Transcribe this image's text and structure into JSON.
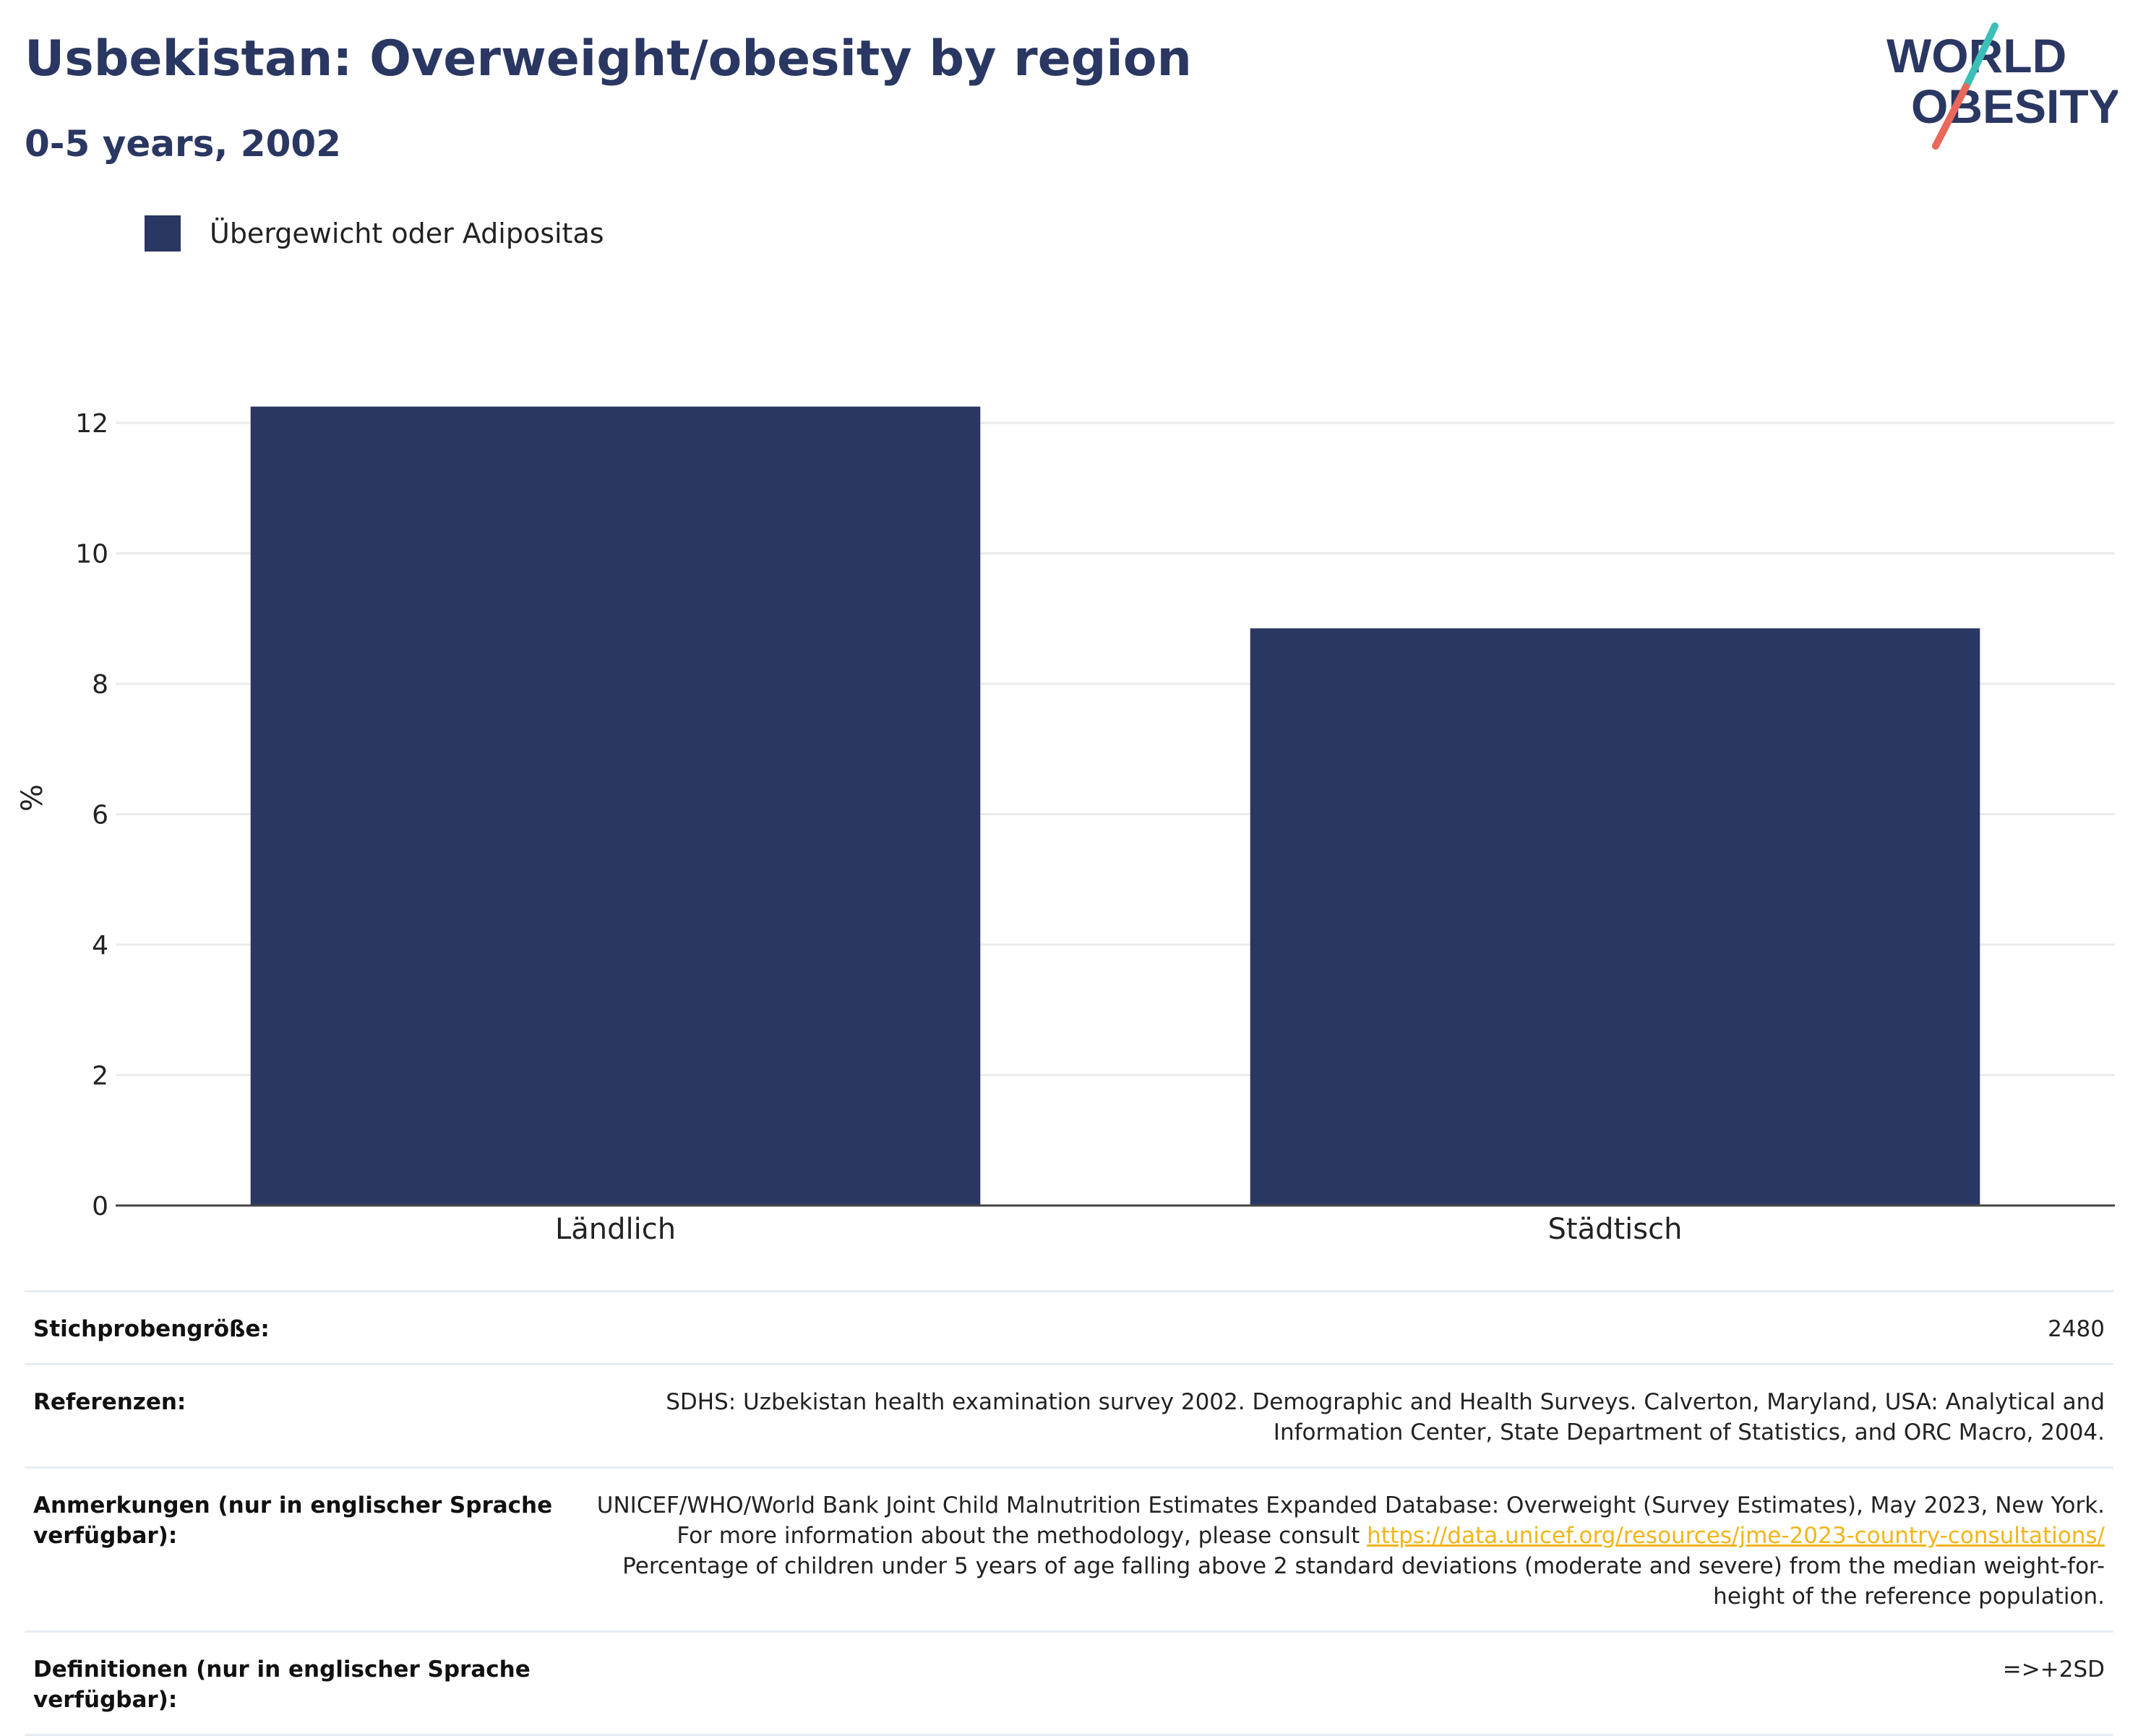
{
  "header": {
    "title": "Usbekistan: Overweight/obesity by region",
    "subtitle": "0-5 years, 2002"
  },
  "logo": {
    "text_line1": "WORLD",
    "text_line2": "OBESITY",
    "colors": {
      "text": "#2a3762",
      "slash_top": "#3bbfb6",
      "slash_bottom": "#e8685a"
    }
  },
  "colors": {
    "bar": "#2a3762",
    "gridline": "#ebebeb",
    "axis": "#444444",
    "link": "#f2b51a"
  },
  "chart_data": {
    "type": "bar",
    "categories": [
      "Ländlich",
      "Städtisch"
    ],
    "series": [
      {
        "name": "Übergewicht oder Adipositas",
        "values": [
          12.25,
          8.85
        ]
      }
    ],
    "ylabel": "%",
    "ylim": [
      0,
      12.5
    ],
    "yticks": [
      0,
      2,
      4,
      6,
      8,
      10,
      12
    ],
    "grid": true,
    "legend_position": "top-left"
  },
  "info": {
    "sample_size": {
      "label": "Stichprobengröße:",
      "value": "2480"
    },
    "references": {
      "label": "Referenzen:",
      "value": "SDHS: Uzbekistan health examination survey 2002. Demographic and Health Surveys. Calverton, Maryland, USA: Analytical and Information Center, State Department of Statistics, and ORC Macro, 2004."
    },
    "notes": {
      "label": "Anmerkungen (nur in englischer Sprache verfügbar):",
      "text_before": "UNICEF/WHO/World Bank Joint Child Malnutrition Estimates Expanded Database: Overweight (Survey Estimates), May 2023, New York. For more information about the methodology, please consult ",
      "link": "https://data.unicef.org/resources/jme-2023-country-consultations/",
      "text_after": " Percentage of children under 5 years of age falling above 2 standard deviations (moderate and severe) from the median weight-for-height of the reference population."
    },
    "definitions": {
      "label": "Definitionen (nur in englischer Sprache verfügbar):",
      "value": "=>+2SD"
    }
  }
}
